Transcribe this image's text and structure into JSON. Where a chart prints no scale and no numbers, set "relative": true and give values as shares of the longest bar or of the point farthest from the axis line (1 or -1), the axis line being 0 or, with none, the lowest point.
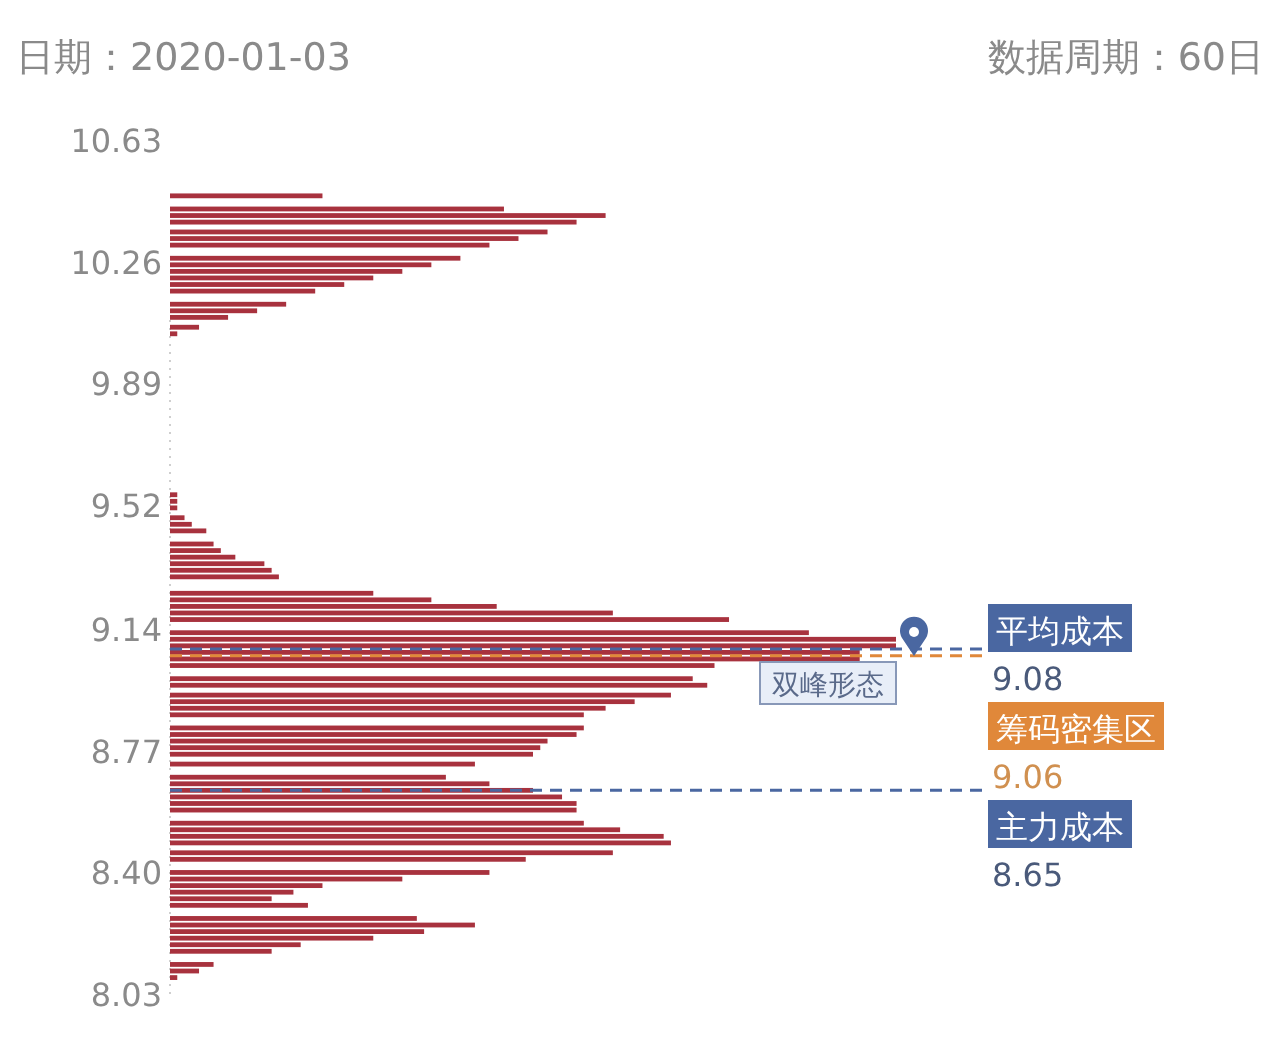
{
  "chart_data": {
    "type": "bar",
    "orientation": "horizontal",
    "relative": true,
    "title": "日期：2020-01-03",
    "subtitle": "数据周期：60日",
    "color": "#a8323e",
    "x": [
      10.46,
      10.42,
      10.4,
      10.38,
      10.35,
      10.33,
      10.31,
      10.27,
      10.25,
      10.23,
      10.21,
      10.19,
      10.17,
      10.13,
      10.11,
      10.09,
      10.06,
      10.04,
      9.55,
      9.53,
      9.51,
      9.48,
      9.46,
      9.44,
      9.4,
      9.38,
      9.36,
      9.34,
      9.32,
      9.3,
      9.25,
      9.23,
      9.21,
      9.19,
      9.17,
      9.13,
      9.11,
      9.09,
      9.07,
      9.05,
      9.03,
      8.99,
      8.97,
      8.94,
      8.92,
      8.9,
      8.88,
      8.84,
      8.82,
      8.8,
      8.78,
      8.76,
      8.73,
      8.69,
      8.67,
      8.65,
      8.63,
      8.61,
      8.59,
      8.55,
      8.53,
      8.51,
      8.49,
      8.46,
      8.44,
      8.4,
      8.38,
      8.36,
      8.34,
      8.32,
      8.3,
      8.26,
      8.24,
      8.22,
      8.2,
      8.18,
      8.16,
      8.12,
      8.1,
      8.08
    ],
    "values": [
      0.21,
      0.46,
      0.6,
      0.56,
      0.52,
      0.48,
      0.44,
      0.4,
      0.36,
      0.32,
      0.28,
      0.24,
      0.2,
      0.16,
      0.12,
      0.08,
      0.04,
      0.01,
      0.01,
      0.01,
      0.01,
      0.02,
      0.03,
      0.05,
      0.06,
      0.07,
      0.09,
      0.13,
      0.14,
      0.15,
      0.28,
      0.36,
      0.45,
      0.61,
      0.77,
      0.88,
      1,
      1,
      0.95,
      0.95,
      0.75,
      0.72,
      0.74,
      0.69,
      0.64,
      0.6,
      0.57,
      0.57,
      0.56,
      0.52,
      0.51,
      0.5,
      0.42,
      0.38,
      0.44,
      0.5,
      0.54,
      0.56,
      0.56,
      0.57,
      0.62,
      0.68,
      0.69,
      0.61,
      0.49,
      0.44,
      0.32,
      0.21,
      0.17,
      0.14,
      0.19,
      0.34,
      0.42,
      0.35,
      0.28,
      0.18,
      0.14,
      0.06,
      0.04,
      0.01
    ],
    "ylim": [
      8.03,
      10.63
    ],
    "yticks": [
      {
        "value": 8.03,
        "label": "8.03"
      },
      {
        "value": 8.4,
        "label": "8.40"
      },
      {
        "value": 8.77,
        "label": "8.77"
      },
      {
        "value": 9.14,
        "label": "9.14"
      },
      {
        "value": 9.52,
        "label": "9.52"
      },
      {
        "value": 9.89,
        "label": "9.89"
      },
      {
        "value": 10.26,
        "label": "10.26"
      },
      {
        "value": 10.63,
        "label": "10.63"
      }
    ],
    "ref_lines": [
      {
        "axis": "y",
        "value": 9.08,
        "label": "平均成本",
        "color": "#4a67a1",
        "line_style": "dashed"
      },
      {
        "axis": "y",
        "value": 9.06,
        "label": "筹码密集区",
        "color": "#e0883a",
        "line_style": "dashed"
      },
      {
        "axis": "y",
        "value": 8.65,
        "label": "主力成本",
        "color": "#4a67a1",
        "line_style": "dashed"
      }
    ],
    "annotations": [
      "双峰形态",
      "9.08",
      "9.06",
      "8.65"
    ],
    "grid": false,
    "legend": false
  }
}
